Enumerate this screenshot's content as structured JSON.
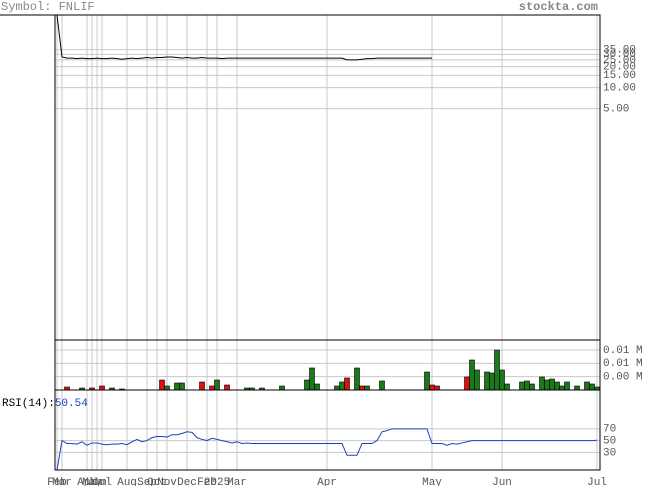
{
  "header": {
    "symbol": "Symbol: FNLIF",
    "site": "stockta.com"
  },
  "chart_data": [
    {
      "type": "line",
      "log_scale": true,
      "color": "#000000",
      "grid": true,
      "categories": [
        "Feb",
        "Mar",
        null,
        null,
        null,
        null,
        "Apr",
        "May",
        "Jun",
        "Jul",
        null,
        null,
        null,
        null,
        "Aug",
        null,
        null,
        null,
        "Sep",
        null,
        "Oct",
        null,
        "Nov",
        null,
        null,
        null,
        "Dec",
        null,
        null,
        null,
        "Feb",
        null,
        "2025",
        null,
        null,
        null,
        "Mar",
        null,
        null,
        null,
        null,
        null,
        null,
        null,
        null,
        null,
        null,
        null,
        null,
        null,
        null,
        null,
        null,
        null,
        "Apr",
        null,
        null,
        null,
        null,
        null,
        null,
        null,
        null,
        null,
        null,
        null,
        null,
        null,
        null,
        null,
        null,
        null,
        null,
        null,
        null,
        "May",
        null,
        null,
        null,
        null,
        null,
        null,
        null,
        null,
        null,
        null,
        null,
        null,
        null,
        "Jun",
        null,
        null,
        null,
        null,
        null,
        null,
        null,
        null,
        null,
        null,
        null,
        null,
        null,
        null,
        null,
        null,
        null,
        null,
        "Jul"
      ],
      "values": [
        110,
        27.5,
        26.5,
        26.5,
        26,
        26.5,
        26,
        26,
        26.5,
        26,
        26,
        26.5,
        26,
        25.5,
        26,
        26.5,
        26,
        26.5,
        27,
        26.5,
        27,
        27,
        27.5,
        27.5,
        27,
        26.5,
        27,
        26.5,
        26.5,
        27,
        26.5,
        26.5,
        26.5,
        26,
        26.5,
        26.5,
        26.5,
        26.5,
        26.5,
        26.5,
        26.5,
        26.5,
        26.5,
        26.5,
        26.5,
        26.5,
        26.5,
        26.5,
        26.5,
        26.5,
        26.5,
        26.5,
        26.5,
        26.5,
        26.5,
        26.5,
        26.5,
        26.5,
        25,
        25,
        25,
        25.5,
        26,
        26,
        26.5,
        26.5,
        26.5,
        26.5,
        26.5,
        26.5,
        26.5,
        26.5,
        26.5,
        26.5,
        26.5,
        26.5,
        null,
        null,
        null,
        null,
        null,
        null,
        null,
        null,
        null,
        null,
        null,
        null,
        null,
        null,
        null,
        null,
        null,
        null,
        null,
        null,
        null,
        null,
        null,
        null,
        null,
        null,
        null,
        null,
        null,
        null,
        null,
        null,
        null
      ],
      "ylim": [
        0.0024,
        110
      ],
      "yticks": [
        {
          "value": 35,
          "label": "35.00"
        },
        {
          "value": 30,
          "label": "30.00"
        },
        {
          "value": 25,
          "label": "25.00"
        },
        {
          "value": 20,
          "label": "20.00"
        },
        {
          "value": 15,
          "label": "15.00"
        },
        {
          "value": 10,
          "label": "10.00"
        },
        {
          "value": 5,
          "label": "5.00"
        }
      ]
    },
    {
      "type": "bar",
      "grid": true,
      "values": [
        null,
        null,
        0.0009,
        null,
        null,
        0.0006,
        null,
        0.0006,
        null,
        0.0012,
        null,
        0.0006,
        null,
        0.0003,
        null,
        null,
        null,
        null,
        null,
        null,
        null,
        0.003,
        0.0012,
        null,
        0.0021,
        0.0021,
        null,
        null,
        null,
        0.0024,
        null,
        0.0012,
        0.003,
        null,
        0.0015,
        null,
        null,
        null,
        0.0006,
        0.0006,
        null,
        0.0006,
        null,
        null,
        null,
        0.0012,
        null,
        null,
        null,
        null,
        0.003,
        0.0066,
        0.0018,
        null,
        null,
        null,
        0.0012,
        0.0024,
        0.0036,
        null,
        0.0066,
        0.0012,
        0.0012,
        null,
        null,
        0.0027,
        null,
        null,
        null,
        null,
        null,
        null,
        null,
        null,
        0.0054,
        0.0015,
        0.0012,
        null,
        null,
        null,
        null,
        null,
        0.0039,
        0.009,
        0.006,
        null,
        0.0054,
        0.0051,
        0.012,
        0.006,
        0.0018,
        null,
        null,
        0.0024,
        0.0027,
        0.0018,
        null,
        0.0039,
        0.003,
        0.0033,
        0.0024,
        0.0012,
        0.0024,
        null,
        0.0012,
        null,
        0.0024,
        0.0018,
        0.0009
      ],
      "colors": [
        null,
        null,
        "#e01010",
        null,
        null,
        "#1a7a1a",
        null,
        "#e01010",
        null,
        "#e01010",
        null,
        "#1a7a1a",
        null,
        "#1a7a1a",
        null,
        null,
        null,
        null,
        null,
        null,
        null,
        "#e01010",
        "#1a7a1a",
        null,
        "#1a7a1a",
        "#1a7a1a",
        null,
        null,
        null,
        "#e01010",
        null,
        "#e01010",
        "#1a7a1a",
        null,
        "#e01010",
        null,
        null,
        null,
        "#1a7a1a",
        "#1a7a1a",
        null,
        "#1a7a1a",
        null,
        null,
        null,
        "#1a7a1a",
        null,
        null,
        null,
        null,
        "#1a7a1a",
        "#1a7a1a",
        "#1a7a1a",
        null,
        null,
        null,
        "#1a7a1a",
        "#1a7a1a",
        "#e01010",
        null,
        "#1a7a1a",
        "#e01010",
        "#1a7a1a",
        null,
        null,
        "#1a7a1a",
        null,
        null,
        null,
        null,
        null,
        null,
        null,
        null,
        "#1a7a1a",
        "#e01010",
        "#e01010",
        null,
        null,
        null,
        null,
        null,
        "#e01010",
        "#1a7a1a",
        "#1a7a1a",
        null,
        "#1a7a1a",
        "#1a7a1a",
        "#1a7a1a",
        "#1a7a1a",
        "#1a7a1a",
        null,
        null,
        "#1a7a1a",
        "#1a7a1a",
        "#1a7a1a",
        null,
        "#1a7a1a",
        "#1a7a1a",
        "#1a7a1a",
        "#1a7a1a",
        "#1a7a1a",
        "#1a7a1a",
        null,
        "#1a7a1a",
        null,
        "#1a7a1a",
        "#1a7a1a",
        "#1a7a1a"
      ],
      "ylim": [
        0,
        0.015
      ],
      "yticks": [
        {
          "value": 0.012,
          "label": "0.01 M"
        },
        {
          "value": 0.008,
          "label": "0.01 M"
        },
        {
          "value": 0.004,
          "label": "0.00 M"
        }
      ]
    },
    {
      "type": "line",
      "title": "RSI(14):",
      "color": "#2040c0",
      "grid": true,
      "values": [
        0,
        50,
        45,
        45,
        44,
        48,
        42,
        46,
        46,
        44,
        43,
        44,
        44,
        45,
        43,
        48,
        52,
        48,
        50,
        55,
        57,
        57,
        56,
        60,
        60,
        62,
        65,
        64,
        55,
        52,
        50,
        54,
        52,
        50,
        48,
        46,
        48,
        45,
        46,
        45,
        45,
        45,
        45,
        45,
        45,
        45,
        45,
        45,
        45,
        45,
        45,
        45,
        45,
        45,
        45,
        45,
        45,
        45,
        25,
        25,
        25,
        45,
        45,
        45,
        50,
        65,
        67,
        70,
        70,
        70,
        70,
        70,
        70,
        70,
        70,
        45,
        45,
        45,
        42,
        45,
        44,
        46,
        48,
        50,
        50,
        50,
        50,
        50,
        50,
        50,
        50,
        50,
        50,
        50,
        50,
        50,
        50,
        50,
        50,
        50,
        50,
        50,
        50,
        50,
        50,
        50,
        50,
        50,
        50.54
      ],
      "ylim": [
        0,
        136
      ],
      "yticks": [
        70,
        50,
        30
      ]
    }
  ]
}
